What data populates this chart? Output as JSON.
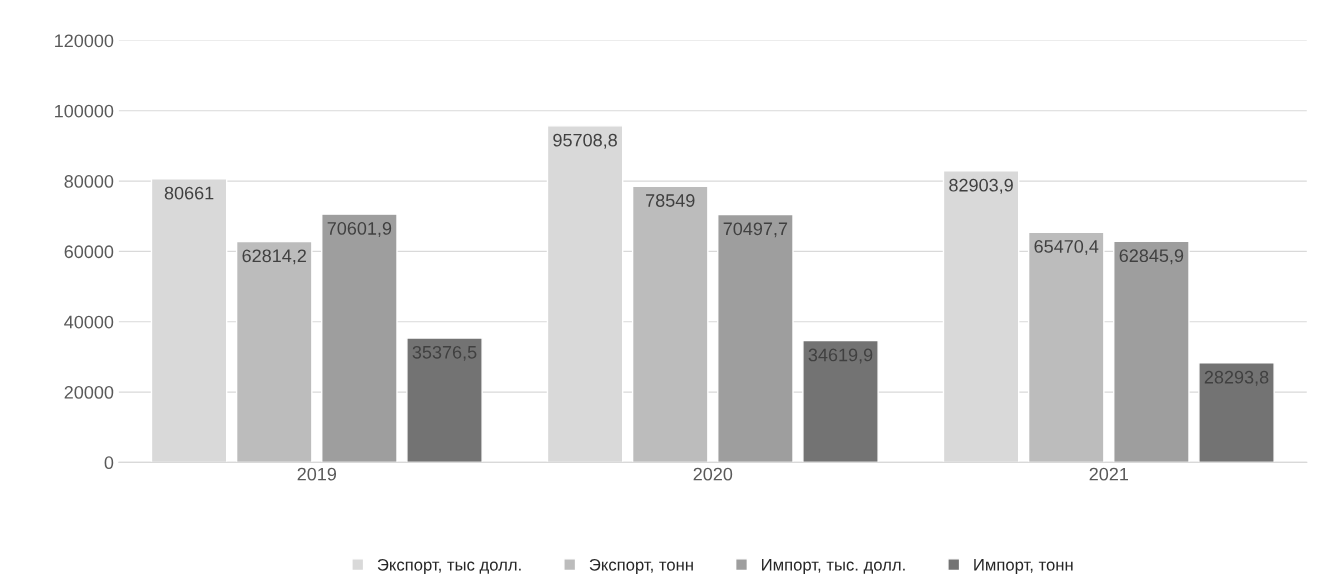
{
  "chart_data": {
    "type": "bar",
    "categories": [
      "2019",
      "2020",
      "2021"
    ],
    "series": [
      {
        "name": "Экспорт, тыс долл.",
        "color": "#d9d9d9",
        "values": [
          80661,
          95708.8,
          82903.9
        ],
        "value_labels": [
          "80661",
          "95708,8",
          "82903,9"
        ]
      },
      {
        "name": "Экспорт, тонн",
        "color": "#bcbcbc",
        "values": [
          62814.2,
          78549,
          65470.4
        ],
        "value_labels": [
          "62814,2",
          "78549",
          "65470,4"
        ]
      },
      {
        "name": "Импорт, тыс. долл.",
        "color": "#9e9e9e",
        "values": [
          70601.9,
          70497.7,
          62845.9
        ],
        "value_labels": [
          "70601,9",
          "70497,7",
          "62845,9"
        ]
      },
      {
        "name": "Импорт, тонн",
        "color": "#737373",
        "values": [
          35376.5,
          34619.9,
          28293.8
        ],
        "value_labels": [
          "35376,5",
          "34619,9",
          "28293,8"
        ]
      }
    ],
    "ylim": [
      0,
      120000
    ],
    "yticks": [
      0,
      20000,
      40000,
      60000,
      80000,
      100000,
      120000
    ],
    "grid": "y",
    "legend": "bottom"
  }
}
